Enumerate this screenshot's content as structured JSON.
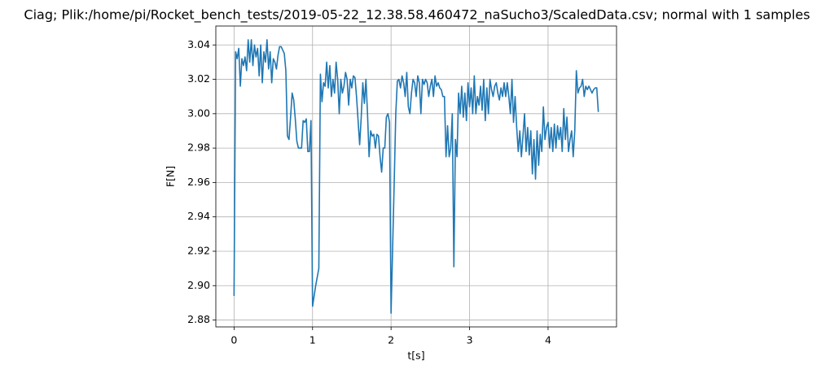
{
  "chart_data": {
    "type": "line",
    "title": "Ciag; Plik:/home/pi/Rocket_bench_tests/2019-05-22_12.38.58.460472_naSucho3/ScaledData.csv; normal with 1 samples",
    "xlabel": "t[s]",
    "ylabel": "F[N]",
    "color": "#1f77b4",
    "grid": true,
    "xlim": [
      -0.232,
      4.872
    ],
    "ylim": [
      2.876,
      3.051
    ],
    "xticks": [
      0,
      1,
      2,
      3,
      4
    ],
    "yticks": [
      2.88,
      {
        "value": 2.9,
        "label": "2.90"
      },
      2.92,
      2.94,
      2.96,
      2.98,
      {
        "value": 3,
        "label": "3.00"
      },
      3.02,
      3.04
    ],
    "x": [
      0.0,
      0.02,
      0.04,
      0.06,
      0.08,
      0.1,
      0.12,
      0.14,
      0.16,
      0.18,
      0.2,
      0.22,
      0.24,
      0.26,
      0.28,
      0.3,
      0.32,
      0.34,
      0.36,
      0.38,
      0.4,
      0.42,
      0.44,
      0.46,
      0.48,
      0.5,
      0.52,
      0.54,
      0.56,
      0.58,
      0.6,
      0.62,
      0.64,
      0.66,
      0.68,
      0.7,
      0.72,
      0.74,
      0.76,
      0.78,
      0.8,
      0.82,
      0.84,
      0.86,
      0.88,
      0.9,
      0.92,
      0.94,
      0.96,
      0.98,
      1.0,
      1.04,
      1.08,
      1.1,
      1.12,
      1.14,
      1.16,
      1.18,
      1.2,
      1.22,
      1.24,
      1.26,
      1.28,
      1.3,
      1.32,
      1.34,
      1.36,
      1.38,
      1.4,
      1.42,
      1.44,
      1.46,
      1.48,
      1.5,
      1.52,
      1.54,
      1.56,
      1.58,
      1.6,
      1.62,
      1.64,
      1.66,
      1.68,
      1.7,
      1.72,
      1.74,
      1.76,
      1.78,
      1.8,
      1.82,
      1.84,
      1.86,
      1.88,
      1.9,
      1.92,
      1.94,
      1.96,
      1.98,
      2.0,
      2.04,
      2.06,
      2.08,
      2.1,
      2.12,
      2.14,
      2.16,
      2.18,
      2.2,
      2.22,
      2.24,
      2.26,
      2.28,
      2.3,
      2.32,
      2.34,
      2.36,
      2.38,
      2.4,
      2.42,
      2.44,
      2.46,
      2.48,
      2.5,
      2.52,
      2.54,
      2.56,
      2.58,
      2.6,
      2.62,
      2.64,
      2.66,
      2.68,
      2.7,
      2.72,
      2.74,
      2.76,
      2.78,
      2.8,
      2.82,
      2.84,
      2.86,
      2.88,
      2.9,
      2.92,
      2.94,
      2.96,
      2.98,
      3.0,
      3.02,
      3.04,
      3.06,
      3.08,
      3.1,
      3.12,
      3.14,
      3.16,
      3.18,
      3.2,
      3.22,
      3.24,
      3.26,
      3.28,
      3.3,
      3.32,
      3.34,
      3.36,
      3.38,
      3.4,
      3.42,
      3.44,
      3.46,
      3.48,
      3.5,
      3.52,
      3.54,
      3.56,
      3.58,
      3.6,
      3.62,
      3.64,
      3.66,
      3.68,
      3.7,
      3.72,
      3.74,
      3.76,
      3.78,
      3.8,
      3.82,
      3.84,
      3.86,
      3.88,
      3.9,
      3.92,
      3.94,
      3.96,
      3.98,
      4.0,
      4.02,
      4.04,
      4.06,
      4.08,
      4.1,
      4.12,
      4.14,
      4.16,
      4.18,
      4.2,
      4.22,
      4.24,
      4.26,
      4.28,
      4.3,
      4.32,
      4.34,
      4.36,
      4.38,
      4.4,
      4.42,
      4.44,
      4.46,
      4.48,
      4.5,
      4.52,
      4.54,
      4.56,
      4.58,
      4.6,
      4.62,
      4.64
    ],
    "values": [
      2.894,
      3.036,
      3.032,
      3.038,
      3.016,
      3.032,
      3.028,
      3.033,
      3.025,
      3.043,
      3.03,
      3.043,
      3.028,
      3.04,
      3.033,
      3.038,
      3.022,
      3.04,
      3.018,
      3.036,
      3.03,
      3.043,
      3.026,
      3.036,
      3.018,
      3.032,
      3.03,
      3.026,
      3.034,
      3.039,
      3.039,
      3.037,
      3.035,
      3.025,
      2.987,
      2.985,
      2.998,
      3.012,
      3.008,
      2.997,
      2.984,
      2.98,
      2.98,
      2.98,
      2.996,
      2.995,
      2.997,
      2.978,
      2.978,
      2.996,
      2.888,
      2.9,
      2.91,
      3.023,
      3.007,
      3.018,
      3.016,
      3.03,
      3.015,
      3.028,
      3.01,
      3.02,
      3.012,
      3.03,
      3.02,
      3.0,
      3.02,
      3.012,
      3.016,
      3.024,
      3.02,
      3.005,
      3.02,
      3.015,
      3.022,
      3.021,
      3.01,
      2.996,
      2.982,
      2.998,
      3.018,
      3.006,
      3.02,
      3.0,
      2.975,
      2.99,
      2.987,
      2.988,
      2.98,
      2.988,
      2.987,
      2.975,
      2.966,
      2.98,
      2.98,
      2.998,
      3.0,
      2.995,
      2.884,
      2.96,
      3.0,
      3.019,
      3.02,
      3.015,
      3.022,
      3.018,
      3.01,
      3.024,
      3.004,
      3.0,
      3.012,
      3.02,
      3.018,
      3.01,
      3.022,
      3.018,
      3.0,
      3.02,
      3.017,
      3.02,
      3.018,
      3.01,
      3.016,
      3.02,
      3.01,
      3.022,
      3.016,
      3.018,
      3.015,
      3.014,
      3.01,
      3.01,
      2.975,
      2.993,
      2.975,
      2.98,
      3.0,
      2.911,
      2.985,
      2.975,
      3.012,
      3.0,
      3.016,
      2.998,
      3.012,
      2.996,
      3.018,
      3.004,
      3.015,
      3.0,
      3.022,
      3.0,
      3.01,
      3.005,
      3.016,
      3.002,
      3.02,
      2.996,
      3.015,
      3.0,
      3.02,
      3.014,
      3.01,
      3.016,
      3.018,
      3.012,
      3.008,
      3.015,
      3.01,
      3.018,
      3.01,
      3.018,
      3.01,
      3.0,
      3.02,
      2.995,
      3.01,
      2.992,
      2.978,
      2.99,
      2.975,
      2.987,
      3.0,
      2.978,
      2.992,
      2.976,
      2.99,
      2.965,
      2.985,
      2.962,
      2.99,
      2.97,
      2.988,
      2.978,
      3.004,
      2.985,
      2.992,
      2.995,
      2.98,
      2.992,
      2.978,
      2.994,
      2.98,
      2.993,
      2.985,
      2.992,
      2.978,
      3.003,
      2.985,
      2.998,
      2.978,
      2.985,
      2.99,
      2.975,
      2.99,
      3.025,
      3.012,
      3.015,
      3.016,
      3.02,
      3.01,
      3.016,
      3.014,
      3.016,
      3.014,
      3.012,
      3.014,
      3.015,
      3.015,
      3.001
    ]
  }
}
